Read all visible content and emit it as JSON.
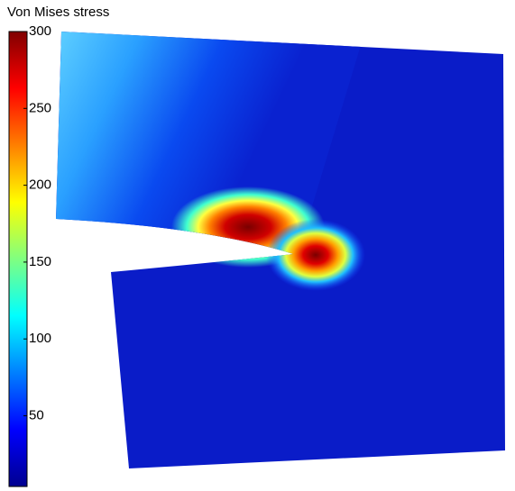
{
  "chart_data": {
    "type": "contour",
    "title": "Von Mises stress",
    "colormap": "jet",
    "clim": [
      4,
      300
    ],
    "cticks": [
      50,
      100,
      150,
      200,
      250,
      300
    ]
  }
}
